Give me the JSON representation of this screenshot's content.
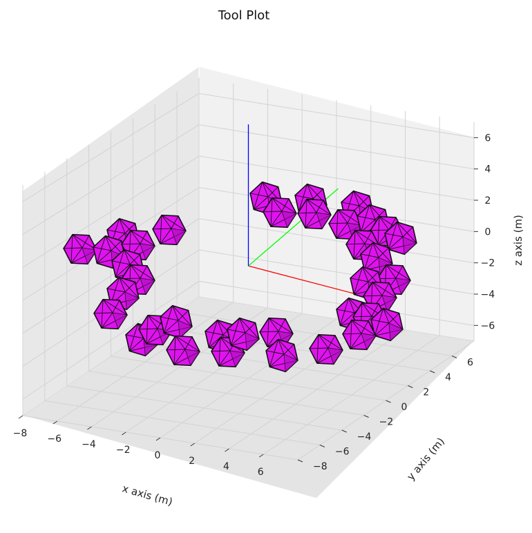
{
  "chart_data": {
    "type": "scatter",
    "projection": "3d",
    "title": "Tool Plot",
    "xlabel": "x axis (m)",
    "ylabel": "y axis (m)",
    "zlabel": "z axis (m)",
    "xlim": [
      -8,
      8
    ],
    "ylim": [
      -8,
      8
    ],
    "zlim": [
      -7,
      7
    ],
    "xticks": [
      "−8",
      "−6",
      "−4",
      "−2",
      "0",
      "2",
      "4",
      "6"
    ],
    "yticks": [
      "−8",
      "−6",
      "−4",
      "−2",
      "0",
      "2",
      "4",
      "6"
    ],
    "zticks": [
      "−6",
      "−4",
      "−2",
      "0",
      "2",
      "4",
      "6"
    ],
    "grid": true,
    "marker": "icosahedron",
    "colors": {
      "face": "#e012f0",
      "edge": "#111111",
      "pane": "#f0f0f0",
      "grid": "#d2d2d2",
      "frame_x": "#ff0000",
      "frame_y": "#00ff00",
      "frame_z": "#0000ff"
    },
    "frame_axes": [
      {
        "axis": "x",
        "color": "#ff0000"
      },
      {
        "axis": "y",
        "color": "#00ff00"
      },
      {
        "axis": "z",
        "color": "#0000ff"
      }
    ]
  }
}
